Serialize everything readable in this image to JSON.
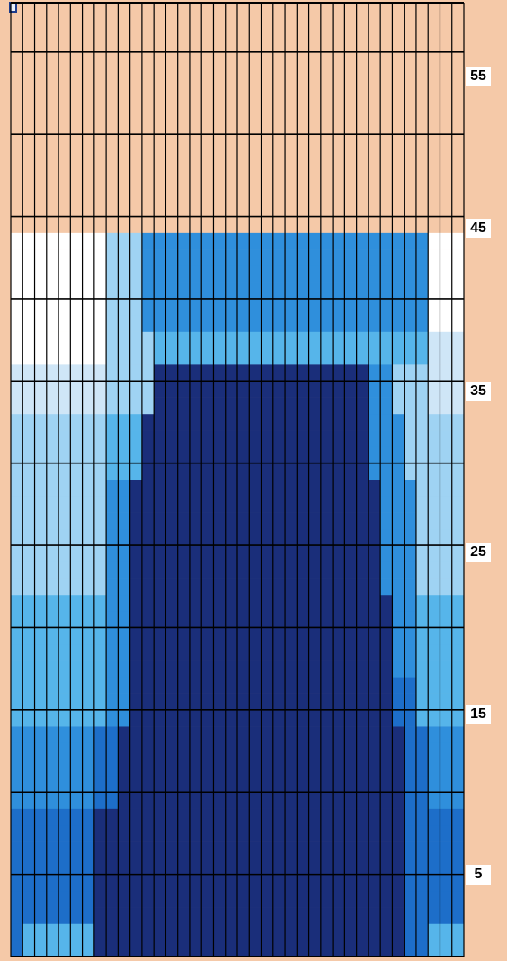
{
  "colors": {
    "background": "#f5c9a8",
    "grid_line": "#000000",
    "empty_cell": "#f5c9a8",
    "palette": [
      "#f5c9a8",
      "#ffffff",
      "#cfe6f7",
      "#9fd3f3",
      "#56b5ea",
      "#2f8fdc",
      "#1d6ec9",
      "#1a2e7a"
    ]
  },
  "scale_labels": [
    "55",
    "45",
    "35",
    "25",
    "15",
    "5"
  ],
  "grid": {
    "columns": 38,
    "rows": 58,
    "bands": [
      {
        "row_from": 41,
        "row_to": 43,
        "col_ranges": [
          [
            0,
            7,
            1
          ],
          [
            8,
            10,
            3
          ],
          [
            11,
            34,
            5
          ],
          [
            35,
            37,
            1
          ]
        ]
      },
      {
        "row_from": 38,
        "row_to": 40,
        "col_ranges": [
          [
            0,
            7,
            1
          ],
          [
            8,
            10,
            3
          ],
          [
            11,
            34,
            5
          ],
          [
            35,
            37,
            1
          ]
        ]
      },
      {
        "row_from": 36,
        "row_to": 37,
        "col_ranges": [
          [
            0,
            7,
            1
          ],
          [
            8,
            11,
            3
          ],
          [
            12,
            31,
            4
          ],
          [
            32,
            34,
            4
          ],
          [
            35,
            37,
            2
          ]
        ]
      },
      {
        "row_from": 33,
        "row_to": 35,
        "col_ranges": [
          [
            0,
            7,
            2
          ],
          [
            8,
            11,
            3
          ],
          [
            12,
            29,
            7
          ],
          [
            30,
            31,
            5
          ],
          [
            32,
            34,
            3
          ],
          [
            35,
            37,
            2
          ]
        ]
      },
      {
        "row_from": 29,
        "row_to": 32,
        "col_ranges": [
          [
            0,
            7,
            3
          ],
          [
            8,
            10,
            4
          ],
          [
            11,
            29,
            7
          ],
          [
            30,
            32,
            5
          ],
          [
            33,
            37,
            3
          ]
        ]
      },
      {
        "row_from": 22,
        "row_to": 28,
        "col_ranges": [
          [
            0,
            7,
            3
          ],
          [
            8,
            9,
            5
          ],
          [
            10,
            30,
            7
          ],
          [
            31,
            33,
            5
          ],
          [
            34,
            37,
            3
          ]
        ]
      },
      {
        "row_from": 17,
        "row_to": 21,
        "col_ranges": [
          [
            0,
            7,
            4
          ],
          [
            8,
            9,
            5
          ],
          [
            10,
            31,
            7
          ],
          [
            32,
            33,
            5
          ],
          [
            34,
            37,
            4
          ]
        ]
      },
      {
        "row_from": 14,
        "row_to": 16,
        "col_ranges": [
          [
            0,
            7,
            4
          ],
          [
            8,
            9,
            5
          ],
          [
            10,
            31,
            7
          ],
          [
            32,
            33,
            6
          ],
          [
            34,
            37,
            4
          ]
        ]
      },
      {
        "row_from": 9,
        "row_to": 13,
        "col_ranges": [
          [
            0,
            6,
            5
          ],
          [
            7,
            8,
            6
          ],
          [
            9,
            32,
            7
          ],
          [
            33,
            34,
            6
          ],
          [
            35,
            37,
            5
          ]
        ]
      },
      {
        "row_from": 2,
        "row_to": 8,
        "col_ranges": [
          [
            0,
            6,
            6
          ],
          [
            7,
            32,
            7
          ],
          [
            33,
            34,
            6
          ],
          [
            35,
            37,
            6
          ]
        ]
      },
      {
        "row_from": 0,
        "row_to": 1,
        "col_ranges": [
          [
            0,
            0,
            6
          ],
          [
            1,
            6,
            4
          ],
          [
            7,
            32,
            7
          ],
          [
            33,
            34,
            6
          ],
          [
            35,
            37,
            4
          ]
        ]
      }
    ]
  }
}
